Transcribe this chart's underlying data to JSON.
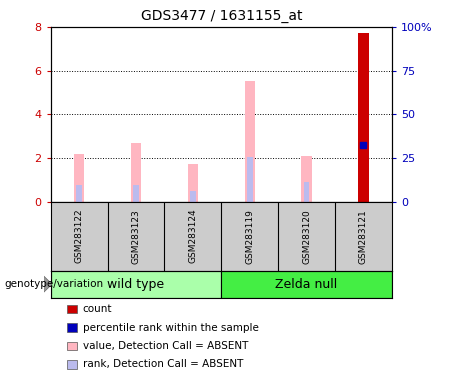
{
  "title": "GDS3477 / 1631155_at",
  "samples": [
    "GSM283122",
    "GSM283123",
    "GSM283124",
    "GSM283119",
    "GSM283120",
    "GSM283121"
  ],
  "group_labels": [
    "wild type",
    "Zelda null"
  ],
  "group_colors": [
    "#aaffaa",
    "#33dd33"
  ],
  "ylim_left": [
    0,
    8
  ],
  "ylim_right": [
    0,
    100
  ],
  "yticks_left": [
    0,
    2,
    4,
    6,
    8
  ],
  "yticks_right": [
    0,
    25,
    50,
    75,
    100
  ],
  "ytick_labels_right": [
    "0",
    "25",
    "50",
    "75",
    "100%"
  ],
  "bar_width": 0.18,
  "value_absent": [
    2.2,
    2.7,
    1.7,
    5.5,
    2.1,
    7.7
  ],
  "rank_absent": [
    0.75,
    0.75,
    0.5,
    2.05,
    0.9,
    2.6
  ],
  "count_value": 7.7,
  "count_index": 5,
  "percentile_rank_pct": 32.5,
  "percentile_rank_index": 5,
  "count_color": "#CC0000",
  "percentile_color": "#0000BB",
  "value_absent_color": "#FFB6C1",
  "rank_absent_color": "#BBBBEE",
  "bg_plot": "#FFFFFF",
  "bg_sample": "#CCCCCC",
  "wt_color": "#AAFFAA",
  "zn_color": "#44EE44",
  "legend_items": [
    [
      "#CC0000",
      "count"
    ],
    [
      "#0000BB",
      "percentile rank within the sample"
    ],
    [
      "#FFB6C1",
      "value, Detection Call = ABSENT"
    ],
    [
      "#BBBBEE",
      "rank, Detection Call = ABSENT"
    ]
  ]
}
